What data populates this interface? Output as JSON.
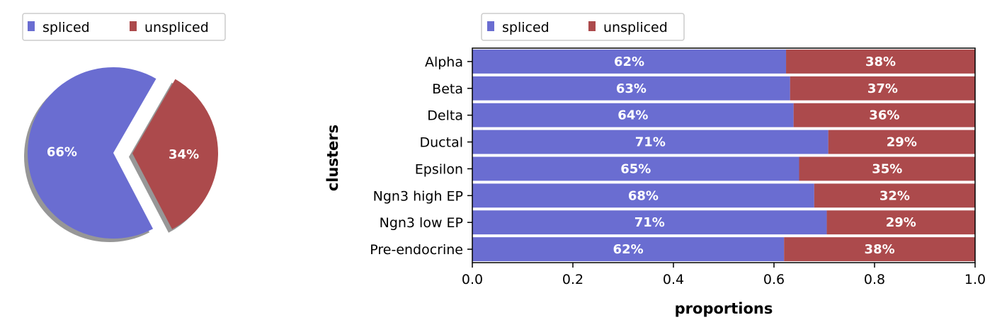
{
  "colors": {
    "spliced": "#6a6dd1",
    "unspliced": "#ac4a4c",
    "shadow": "#8c8c8c",
    "axis": "#000000",
    "label_text": "#ffffff"
  },
  "chart_data": [
    {
      "type": "pie",
      "legend": [
        "spliced",
        "unspliced"
      ],
      "legend_position": "top-left",
      "slices": [
        {
          "label": "spliced",
          "value": 66,
          "display": "66%",
          "exploded": false
        },
        {
          "label": "unspliced",
          "value": 34,
          "display": "34%",
          "exploded": true
        }
      ],
      "shadow": true
    },
    {
      "type": "bar",
      "orientation": "horizontal",
      "stacked": true,
      "legend": [
        "spliced",
        "unspliced"
      ],
      "legend_position": "top-left",
      "ylabel": "clusters",
      "xlabel": "proportions",
      "xlim": [
        0,
        1
      ],
      "xticks": [
        "0.0",
        "0.2",
        "0.4",
        "0.6",
        "0.8",
        "1.0"
      ],
      "categories": [
        "Alpha",
        "Beta",
        "Delta",
        "Ductal",
        "Epsilon",
        "Ngn3 high EP",
        "Ngn3 low EP",
        "Pre-endocrine"
      ],
      "series": [
        {
          "name": "spliced",
          "values": [
            0.624,
            0.632,
            0.639,
            0.708,
            0.65,
            0.68,
            0.705,
            0.62
          ],
          "labels": [
            "62%",
            "63%",
            "64%",
            "71%",
            "65%",
            "68%",
            "71%",
            "62%"
          ]
        },
        {
          "name": "unspliced",
          "values": [
            0.376,
            0.368,
            0.361,
            0.292,
            0.35,
            0.32,
            0.295,
            0.38
          ],
          "labels": [
            "38%",
            "37%",
            "36%",
            "29%",
            "35%",
            "32%",
            "29%",
            "38%"
          ]
        }
      ],
      "grid": false
    }
  ]
}
